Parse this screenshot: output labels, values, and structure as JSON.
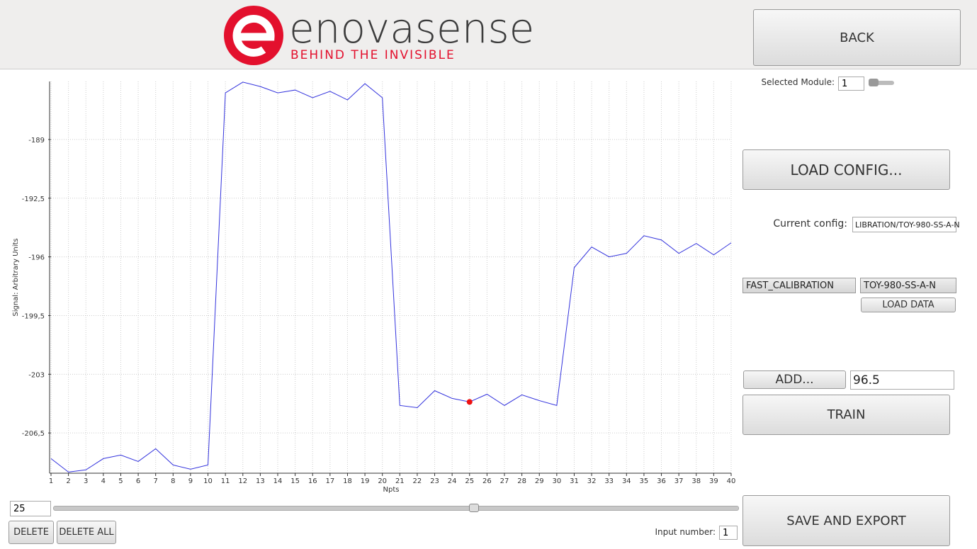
{
  "header": {
    "brand": "enovasense",
    "tagline": "BEHIND THE INVISIBLE"
  },
  "buttons": {
    "back": "BACK",
    "load_config": "LOAD CONFIG...",
    "load_data": "LOAD DATA",
    "add": "ADD...",
    "train": "TRAIN",
    "save_export": "SAVE AND EXPORT",
    "delete": "DELETE",
    "delete_all": "DELETE ALL"
  },
  "module": {
    "label": "Selected Module:",
    "value": "1"
  },
  "config": {
    "label": "Current config:",
    "value": "LIBRATION/TOY-980-SS-A-N",
    "combo_1": "FAST_CALIBRATION",
    "combo_2": "TOY-980-SS-A-N"
  },
  "add_value": "96.5",
  "input_number": {
    "label": "Input number:",
    "value": "1"
  },
  "chart_data": {
    "type": "line",
    "xlabel": "Npts",
    "ylabel": "Signal: Arbitrary Units",
    "x": [
      1,
      2,
      3,
      4,
      5,
      6,
      7,
      8,
      9,
      10,
      11,
      12,
      13,
      14,
      15,
      16,
      17,
      18,
      19,
      20,
      21,
      22,
      23,
      24,
      25,
      26,
      27,
      28,
      29,
      30,
      31,
      32,
      33,
      34,
      35,
      36,
      37,
      38,
      39,
      40
    ],
    "series": [
      {
        "name": "Signal",
        "color": "#3333dd",
        "values": [
          -208.03,
          -208.83,
          -208.7,
          -208.03,
          -207.82,
          -208.2,
          -207.44,
          -208.41,
          -208.66,
          -208.41,
          -186.22,
          -185.58,
          -185.84,
          -186.22,
          -186.05,
          -186.51,
          -186.13,
          -186.64,
          -185.67,
          -186.51,
          -204.86,
          -204.99,
          -203.98,
          -204.44,
          -204.65,
          -204.19,
          -204.86,
          -204.23,
          -204.57,
          -204.86,
          -196.64,
          -195.41,
          -196.0,
          -195.79,
          -194.74,
          -194.99,
          -195.79,
          -195.2,
          -195.88,
          -195.16
        ]
      }
    ],
    "highlight": {
      "x": 25,
      "color": "#ee1111"
    },
    "xlim": [
      1,
      40
    ],
    "xticks": [
      1,
      2,
      3,
      4,
      5,
      6,
      7,
      8,
      9,
      10,
      11,
      12,
      13,
      14,
      15,
      16,
      17,
      18,
      19,
      20,
      21,
      22,
      23,
      24,
      25,
      26,
      27,
      28,
      29,
      30,
      31,
      32,
      33,
      34,
      35,
      36,
      37,
      38,
      39,
      40
    ],
    "ylim": [
      -208.9,
      -185.54
    ],
    "yticks": [
      {
        "value": -206.5,
        "label": "-206,5"
      },
      -203,
      {
        "value": -199.5,
        "label": "-199,5"
      },
      -196,
      {
        "value": -192.5,
        "label": "-192,5"
      },
      -189
    ],
    "grid": true
  }
}
